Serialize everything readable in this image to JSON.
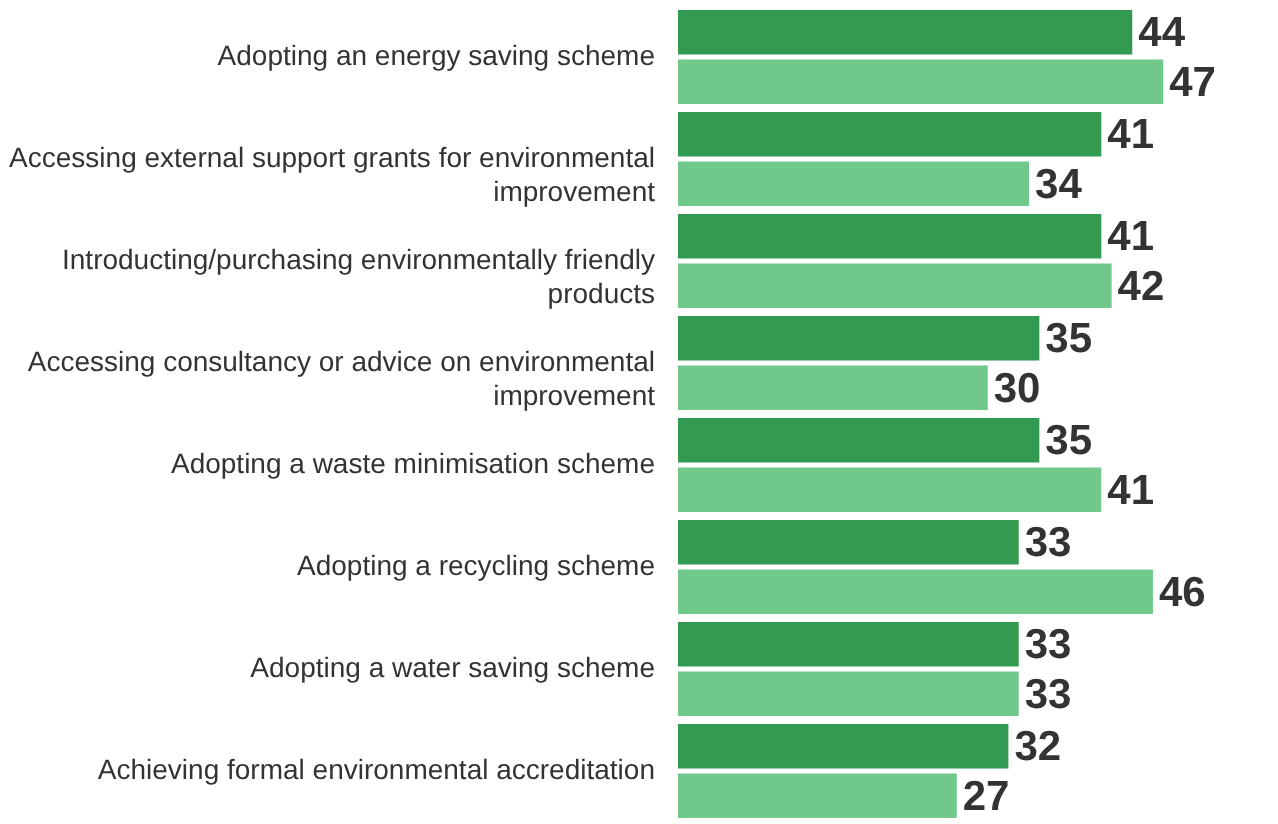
{
  "chart_data": {
    "type": "bar",
    "orientation": "horizontal",
    "categories": [
      "Adopting an energy saving scheme",
      "Accessing external support grants for environmental improvement",
      "Introducting/purchasing environmentally friendly products",
      "Accessing consultancy or advice on environmental improvement",
      "Adopting a waste minimisation scheme",
      "Adopting a recycling scheme",
      "Adopting a water saving scheme",
      "Achieving formal environmental accreditation"
    ],
    "series": [
      {
        "color": "#339a52",
        "values": [
          44,
          41,
          41,
          35,
          35,
          33,
          33,
          32
        ]
      },
      {
        "color": "#70c98a",
        "values": [
          47,
          34,
          42,
          30,
          41,
          46,
          33,
          27
        ]
      }
    ],
    "data_labels": true,
    "legend": false,
    "grid": false
  }
}
